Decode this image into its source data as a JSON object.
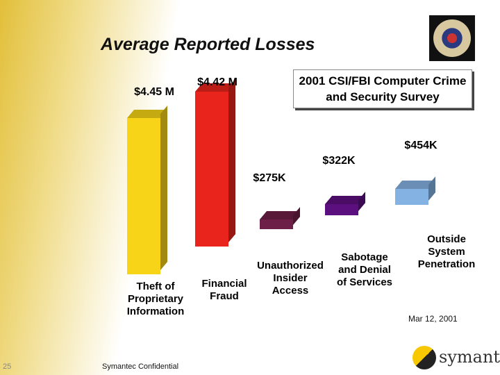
{
  "chart_data": {
    "type": "bar",
    "title": "Average Reported Losses",
    "subtitle": "2001 CSI/FBI Computer Crime and Security Survey",
    "categories": [
      "Theft of Proprietary Information",
      "Financial Fraud",
      "Unauthorized Insider Access",
      "Sabotage and Denial of Services",
      "Outside System Penetration"
    ],
    "values": [
      4450000,
      4420000,
      275000,
      322000,
      454000
    ],
    "value_labels": [
      "$4.45 M",
      "$4.42 M",
      "$275K",
      "$322K",
      "$454K"
    ],
    "colors": [
      "#f7d417",
      "#e8241c",
      "#6e1f47",
      "#5c0f7e",
      "#84b2e2"
    ]
  },
  "footer": {
    "slide_number": "25",
    "confidential": "Symantec Confidential",
    "date": "Mar 12, 2001",
    "logo": "symantec."
  }
}
